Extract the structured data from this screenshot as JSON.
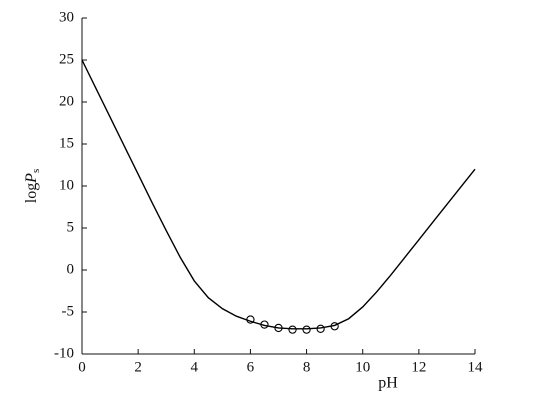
{
  "chart_data": {
    "type": "line",
    "x_label": "pH",
    "y_label": {
      "prefix": "log",
      "variable": "P",
      "subscript": "s"
    },
    "xlim": [
      0,
      14
    ],
    "xticks": [
      0,
      2,
      4,
      6,
      8,
      10,
      12,
      14
    ],
    "ylim": [
      -10,
      30
    ],
    "yticks": [
      -10,
      -5,
      0,
      5,
      10,
      15,
      20,
      25,
      30
    ],
    "series": [
      {
        "type": "line",
        "color": "#000000",
        "x": [
          0,
          0.5,
          1,
          1.5,
          2,
          2.5,
          3,
          3.5,
          4,
          4.5,
          5,
          5.5,
          6,
          6.5,
          7,
          7.5,
          8,
          8.5,
          9,
          9.5,
          10,
          10.5,
          11,
          11.5,
          12,
          12.5,
          13,
          13.5,
          14
        ],
        "values": [
          25,
          21.6,
          18.2,
          14.8,
          11.4,
          8,
          4.7,
          1.5,
          -1.3,
          -3.3,
          -4.6,
          -5.5,
          -6.1,
          -6.6,
          -6.9,
          -7,
          -7,
          -6.9,
          -6.6,
          -5.8,
          -4.4,
          -2.6,
          -0.6,
          1.5,
          3.6,
          5.7,
          7.8,
          9.9,
          12
        ]
      },
      {
        "type": "scatter",
        "color": "#000000",
        "x": [
          6,
          6.5,
          7,
          7.5,
          8,
          8.5,
          9
        ],
        "values": [
          -5.9,
          -6.5,
          -6.9,
          -7.1,
          -7.1,
          -7,
          -6.7
        ]
      }
    ]
  }
}
